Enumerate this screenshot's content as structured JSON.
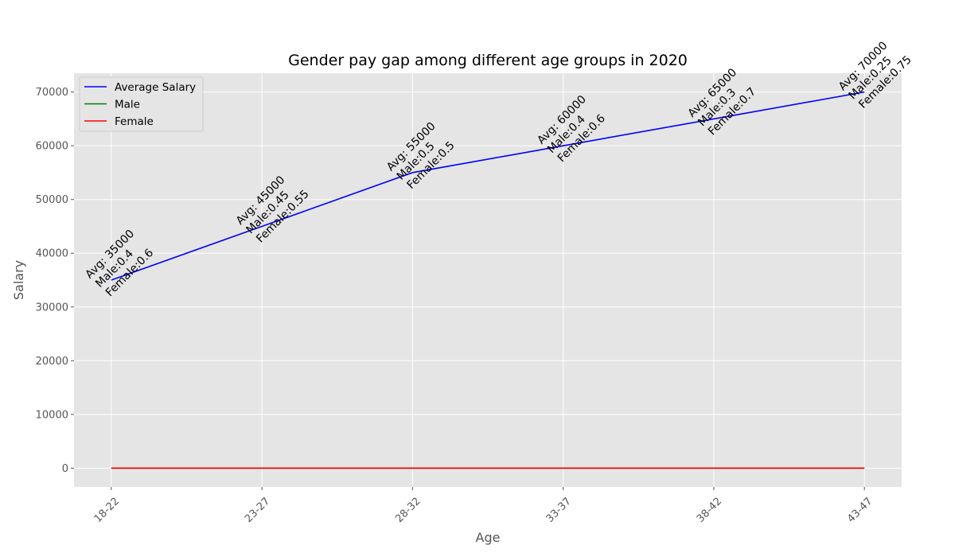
{
  "chart_data": {
    "type": "line",
    "title": "Gender pay gap among different age groups in 2020",
    "xlabel": "Age",
    "ylabel": "Salary",
    "categories": [
      "18-22",
      "23-27",
      "28-32",
      "33-37",
      "38-42",
      "43-47"
    ],
    "ylim": [
      -3500,
      73500
    ],
    "yticks": [
      0,
      10000,
      20000,
      30000,
      40000,
      50000,
      60000,
      70000
    ],
    "grid": true,
    "legend_position": "upper-left",
    "series": [
      {
        "name": "Average Salary",
        "color": "#0000ff",
        "values": [
          35000,
          45000,
          55000,
          60000,
          65000,
          70000
        ]
      },
      {
        "name": "Male",
        "color": "#008000",
        "values": [
          0.4,
          0.45,
          0.5,
          0.4,
          0.3,
          0.25
        ]
      },
      {
        "name": "Female",
        "color": "#ff0000",
        "values": [
          0.6,
          0.55,
          0.5,
          0.6,
          0.7,
          0.75
        ]
      }
    ],
    "annotations": [
      {
        "lines": [
          "Avg: 35000",
          "Male:0.4",
          "Female:0.6"
        ]
      },
      {
        "lines": [
          "Avg: 45000",
          "Male:0.45",
          "Female:0.55"
        ]
      },
      {
        "lines": [
          "Avg: 55000",
          "Male:0.5",
          "Female:0.5"
        ]
      },
      {
        "lines": [
          "Avg: 60000",
          "Male:0.4",
          "Female:0.6"
        ]
      },
      {
        "lines": [
          "Avg: 65000",
          "Male:0.3",
          "Female:0.7"
        ]
      },
      {
        "lines": [
          "Avg: 70000",
          "Male:0.25",
          "Female:0.75"
        ]
      }
    ],
    "colors": {
      "plot_background": "#e5e5e5",
      "grid": "#ffffff"
    }
  }
}
